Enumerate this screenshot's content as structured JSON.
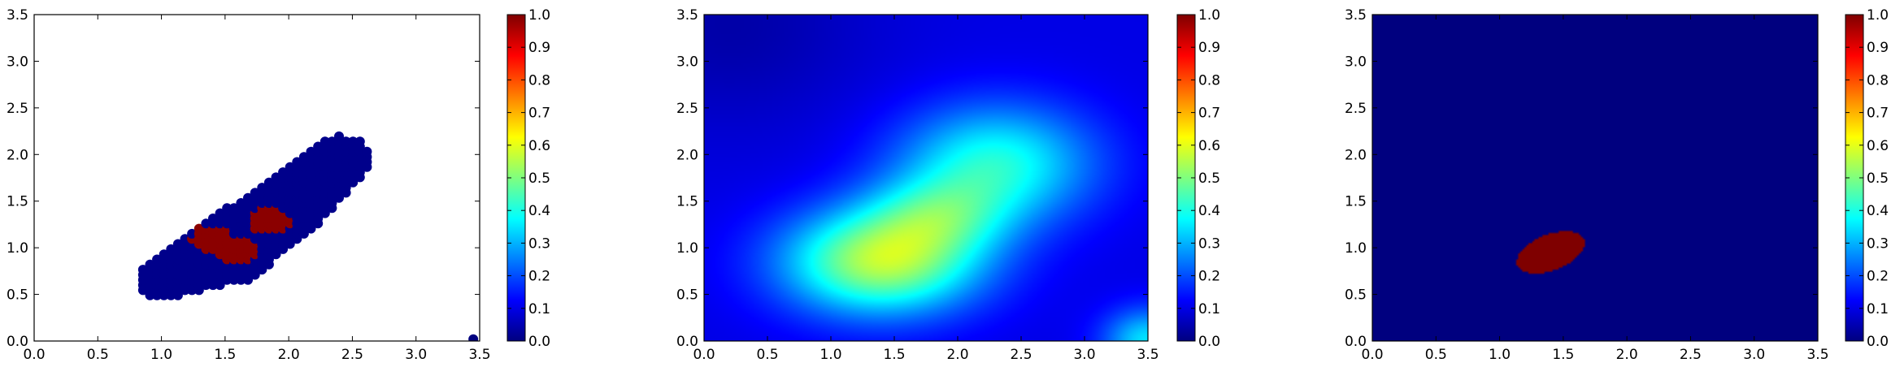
{
  "colors": {
    "jet": [
      "#00007f",
      "#0000ff",
      "#007fff",
      "#00ffff",
      "#7fff7f",
      "#ffff00",
      "#ff7f00",
      "#ff0000",
      "#7f0000"
    ],
    "marker_low": "#00008b",
    "marker_high": "#8b0000",
    "axes": "#000000"
  },
  "chart_data": [
    {
      "type": "scatter",
      "xlim": [
        0.0,
        3.5
      ],
      "ylim": [
        0.0,
        3.5
      ],
      "xticks": [
        "0.0",
        "0.5",
        "1.0",
        "1.5",
        "2.0",
        "2.5",
        "3.0",
        "3.5"
      ],
      "yticks": [
        "0.0",
        "0.5",
        "1.0",
        "1.5",
        "2.0",
        "2.5",
        "3.0",
        "3.5"
      ],
      "grid": false,
      "colorbar": {
        "range": [
          0.0,
          1.0
        ],
        "ticks": [
          "0.0",
          "0.1",
          "0.2",
          "0.3",
          "0.4",
          "0.5",
          "0.6",
          "0.7",
          "0.8",
          "0.9",
          "1.0"
        ],
        "colormap": "jet"
      },
      "regions": {
        "low": {
          "value": 0.0,
          "description_points": "elongated band",
          "centers": [
            [
              1.0,
              0.65
            ],
            [
              1.5,
              0.95
            ],
            [
              2.0,
              1.45
            ],
            [
              2.4,
              1.95
            ]
          ],
          "half_widths": [
            0.2,
            0.35,
            0.3,
            0.25
          ]
        },
        "high": {
          "value": 1.0,
          "centers": [
            [
              1.4,
              1.1
            ],
            [
              1.6,
              1.0
            ],
            [
              1.85,
              1.3
            ]
          ]
        }
      },
      "outlier": {
        "x": 3.45,
        "y": 0.02,
        "value": 0.0
      }
    },
    {
      "type": "heatmap",
      "xlim": [
        0.0,
        3.5
      ],
      "ylim": [
        0.0,
        3.5
      ],
      "xticks": [
        "0.0",
        "0.5",
        "1.0",
        "1.5",
        "2.0",
        "2.5",
        "3.0",
        "3.5"
      ],
      "yticks": [
        "0.0",
        "0.5",
        "1.0",
        "1.5",
        "2.0",
        "2.5",
        "3.0",
        "3.5"
      ],
      "grid": false,
      "colorbar": {
        "range": [
          0.0,
          1.0
        ],
        "ticks": [
          "0.0",
          "0.1",
          "0.2",
          "0.3",
          "0.4",
          "0.5",
          "0.6",
          "0.7",
          "0.8",
          "0.9",
          "1.0"
        ],
        "colormap": "jet"
      },
      "background": 0.1,
      "blobs": [
        {
          "x": 1.4,
          "y": 0.85,
          "sx": 0.55,
          "sy": 0.4,
          "amp": 0.45
        },
        {
          "x": 2.3,
          "y": 1.9,
          "sx": 0.55,
          "sy": 0.45,
          "amp": 0.3
        },
        {
          "x": 1.85,
          "y": 1.35,
          "sx": 0.4,
          "sy": 0.3,
          "amp": 0.18
        },
        {
          "x": 3.5,
          "y": 0.0,
          "sx": 0.25,
          "sy": 0.25,
          "amp": 0.25
        }
      ]
    },
    {
      "type": "heatmap",
      "xlim": [
        0.0,
        3.5
      ],
      "ylim": [
        0.0,
        3.5
      ],
      "xticks": [
        "0.0",
        "0.5",
        "1.0",
        "1.5",
        "2.0",
        "2.5",
        "3.0",
        "3.5"
      ],
      "yticks": [
        "0.0",
        "0.5",
        "1.0",
        "1.5",
        "2.0",
        "2.5",
        "3.0",
        "3.5"
      ],
      "grid": false,
      "colorbar": {
        "range": [
          0.0,
          1.0
        ],
        "ticks": [
          "0.0",
          "0.1",
          "0.2",
          "0.3",
          "0.4",
          "0.5",
          "0.6",
          "0.7",
          "0.8",
          "0.9",
          "1.0"
        ],
        "colormap": "jet"
      },
      "background": 0.0,
      "ellipse": {
        "cx": 1.4,
        "cy": 0.95,
        "rx": 0.3,
        "ry": 0.18,
        "angle_deg": 35,
        "value": 1.0
      }
    }
  ]
}
